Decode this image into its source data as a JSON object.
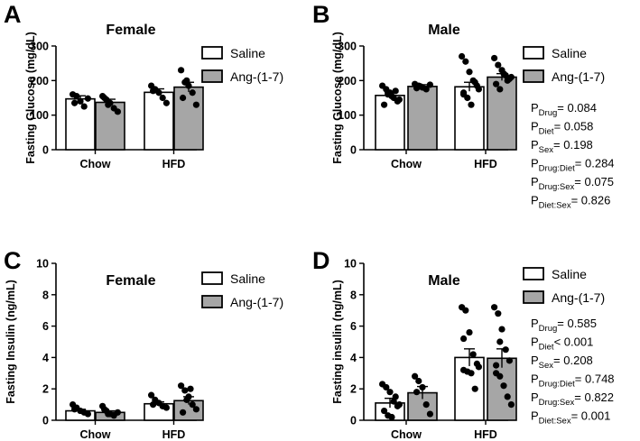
{
  "colors": {
    "saline": "#ffffff",
    "ang": "#a6a6a6",
    "ink": "#000000"
  },
  "chart_data": [
    {
      "panel": "A",
      "type": "bar",
      "title": "Female",
      "ylabel": "Fasting Glucose (mg/dL)",
      "ylim": [
        0,
        300
      ],
      "yticks": [
        0,
        100,
        200,
        300
      ],
      "ytick_labels": [
        "0",
        "100",
        "200",
        "300"
      ],
      "categories": [
        "Chow",
        "HFD"
      ],
      "legend": [
        "Saline",
        "Ang-(1-7)"
      ],
      "series": [
        {
          "name": "Saline",
          "values": [
            147,
            166
          ],
          "sem": [
            9,
            10
          ],
          "points": [
            [
              160,
              155,
              140,
              125,
              148,
              135
            ],
            [
              185,
              175,
              165,
              150,
              135,
              170
            ]
          ]
        },
        {
          "name": "Ang-(1-7)",
          "values": [
            137,
            181
          ],
          "sem": [
            9,
            14
          ],
          "points": [
            [
              155,
              145,
              135,
              120,
              110,
              150,
              130
            ],
            [
              230,
              195,
              185,
              165,
              130,
              150,
              200
            ]
          ]
        }
      ],
      "stats": []
    },
    {
      "panel": "B",
      "type": "bar",
      "title": "Male",
      "ylabel": "Fasting Glucose (mg/dL)",
      "ylim": [
        0,
        300
      ],
      "yticks": [
        0,
        100,
        200,
        300
      ],
      "ytick_labels": [
        "0",
        "100",
        "200",
        "300"
      ],
      "categories": [
        "Chow",
        "HFD"
      ],
      "legend": [
        "Saline",
        "Ang-(1-7)"
      ],
      "series": [
        {
          "name": "Saline",
          "values": [
            157,
            182
          ],
          "sem": [
            8,
            13
          ],
          "points": [
            [
              185,
              175,
              165,
              150,
              140,
              130,
              160,
              155,
              170,
              145
            ],
            [
              270,
              255,
              225,
              200,
              185,
              165,
              150,
              130,
              195,
              175,
              160
            ]
          ]
        },
        {
          "name": "Ang-(1-7)",
          "values": [
            183,
            210
          ],
          "sem": [
            5,
            10
          ],
          "points": [
            [
              190,
              185,
              180,
              175,
              188,
              178,
              183
            ],
            [
              265,
              245,
              230,
              215,
              205,
              190,
              175,
              220,
              200,
              210
            ]
          ]
        }
      ],
      "stats": [
        {
          "base": "P",
          "sub": "Drug",
          "text": "= 0.084"
        },
        {
          "base": "P",
          "sub": "Diet",
          "text": "= 0.058"
        },
        {
          "base": "P",
          "sub": "Sex",
          "text": "= 0.198"
        },
        {
          "base": "P",
          "sub": "Drug:Diet",
          "text": "= 0.284"
        },
        {
          "base": "P",
          "sub": "Drug:Sex",
          "text": "= 0.075"
        },
        {
          "base": "P",
          "sub": "Diet:Sex",
          "text": "= 0.826"
        }
      ]
    },
    {
      "panel": "C",
      "type": "bar",
      "title": "Female",
      "ylabel": "Fasting Insulin (ng/mL)",
      "ylim": [
        0,
        10
      ],
      "yticks": [
        0,
        2,
        4,
        6,
        8,
        10
      ],
      "ytick_labels": [
        "0",
        "2",
        "4",
        "6",
        "8",
        "10"
      ],
      "categories": [
        "Chow",
        "HFD"
      ],
      "legend": [
        "Saline",
        "Ang-(1-7)"
      ],
      "series": [
        {
          "name": "Saline",
          "values": [
            0.6,
            1.05
          ],
          "sem": [
            0.1,
            0.12
          ],
          "points": [
            [
              1.0,
              0.8,
              0.6,
              0.5,
              0.4,
              0.7
            ],
            [
              1.6,
              1.3,
              1.1,
              0.9,
              0.8,
              1.0
            ]
          ]
        },
        {
          "name": "Ang-(1-7)",
          "values": [
            0.5,
            1.25
          ],
          "sem": [
            0.1,
            0.25
          ],
          "points": [
            [
              0.9,
              0.6,
              0.4,
              0.3,
              0.5,
              0.7,
              0.4
            ],
            [
              2.2,
              1.9,
              1.5,
              1.0,
              0.7,
              0.5,
              1.3,
              2.0
            ]
          ]
        }
      ],
      "stats": []
    },
    {
      "panel": "D",
      "type": "bar",
      "title": "Male",
      "ylabel": "Fasting insulin (ng/mL)",
      "ylim": [
        0,
        10
      ],
      "yticks": [
        0,
        2,
        4,
        6,
        8,
        10
      ],
      "ytick_labels": [
        "0",
        "2",
        "4",
        "6",
        "8",
        "10"
      ],
      "categories": [
        "Chow",
        "HFD"
      ],
      "legend": [
        "Saline",
        "Ang-(1-7)"
      ],
      "series": [
        {
          "name": "Saline",
          "values": [
            1.1,
            4.0
          ],
          "sem": [
            0.3,
            0.55
          ],
          "points": [
            [
              2.3,
              2.1,
              1.8,
              1.2,
              0.9,
              0.6,
              0.3,
              0.2,
              1.5,
              1.0
            ],
            [
              7.2,
              7.0,
              5.6,
              4.2,
              3.6,
              3.2,
              3.1,
              3.0,
              2.0,
              3.4,
              5.2
            ]
          ]
        },
        {
          "name": "Ang-(1-7)",
          "values": [
            1.75,
            3.95
          ],
          "sem": [
            0.4,
            0.6
          ],
          "points": [
            [
              2.8,
              2.5,
              2.1,
              1.0,
              0.4,
              1.8
            ],
            [
              7.2,
              6.8,
              5.8,
              4.5,
              3.8,
              3.0,
              2.8,
              2.2,
              1.5,
              1.0,
              3.5,
              5.0
            ]
          ]
        }
      ],
      "stats": [
        {
          "base": "P",
          "sub": "Drug",
          "text": "= 0.585"
        },
        {
          "base": "P",
          "sub": "Diet",
          "text": "< 0.001"
        },
        {
          "base": "P",
          "sub": "Sex",
          "text": "= 0.208"
        },
        {
          "base": "P",
          "sub": "Drug:Diet",
          "text": "= 0.748"
        },
        {
          "base": "P",
          "sub": "Drug:Sex",
          "text": "= 0.822"
        },
        {
          "base": "P",
          "sub": "Diet:Sex",
          "text": "= 0.001"
        }
      ]
    }
  ]
}
